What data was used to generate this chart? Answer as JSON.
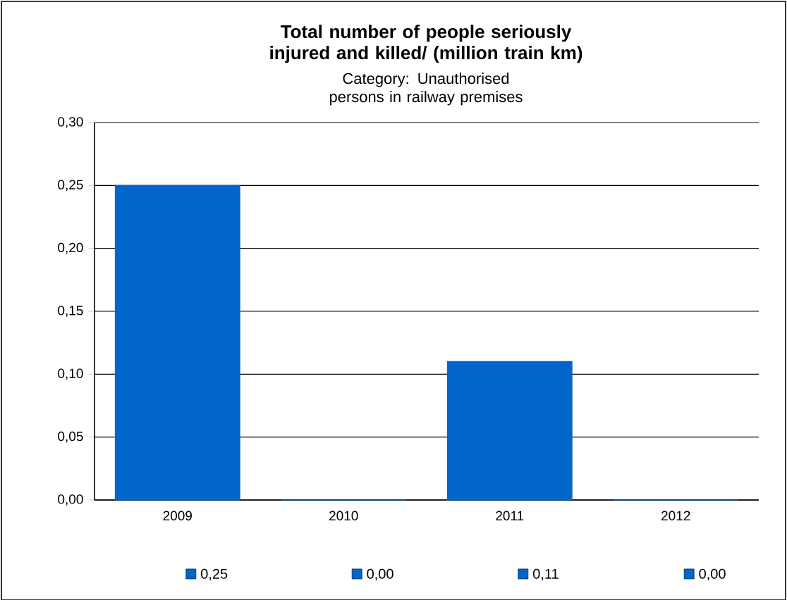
{
  "chart_data": {
    "type": "bar",
    "title": "Total number of people seriously injured and killed/ (million train km)",
    "subtitle": "Category: Unauthorised persons in railway premises",
    "categories": [
      "2009",
      "2010",
      "2011",
      "2012"
    ],
    "series": [
      {
        "color": "#0066cc",
        "values": [
          0.25,
          0,
          0.11,
          0
        ],
        "value_labels": [
          "0,25",
          "0,00",
          "0,11",
          "0,00"
        ]
      }
    ],
    "ylim": [
      0,
      0.3
    ],
    "yticks": [
      {
        "value": 0,
        "label": "0,00"
      },
      {
        "value": 0.05,
        "label": "0,05"
      },
      {
        "value": 0.1,
        "label": "0,10"
      },
      {
        "value": 0.15,
        "label": "0,15"
      },
      {
        "value": 0.2,
        "label": "0,20"
      },
      {
        "value": 0.25,
        "label": "0,25"
      },
      {
        "value": 0.3,
        "label": "0,30"
      }
    ],
    "grid": "y"
  }
}
